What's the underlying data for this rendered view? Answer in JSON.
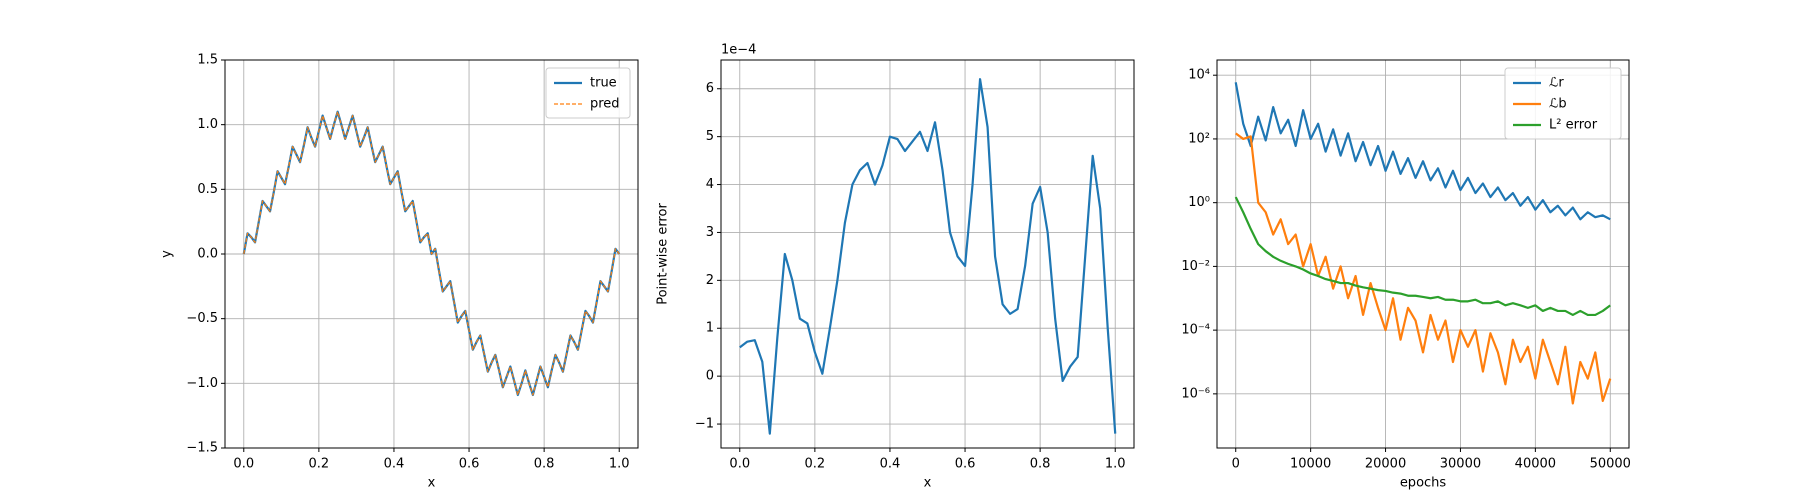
{
  "chart_data": [
    {
      "type": "line",
      "xlabel": "x",
      "ylabel": "y",
      "grid": true,
      "legend": "upper right",
      "xlim": [
        -0.05,
        1.05
      ],
      "ylim": [
        -1.5,
        1.5
      ],
      "xticks": [
        {
          "value": 0,
          "label": "0.0"
        },
        0.2,
        0.4,
        0.6,
        0.8,
        {
          "value": 1,
          "label": "1.0"
        }
      ],
      "yticks": [
        {
          "value": -1.5,
          "label": "−1.5"
        },
        {
          "value": -1,
          "label": "−1.0"
        },
        {
          "value": -0.5,
          "label": "−0.5"
        },
        {
          "value": 0,
          "label": "0.0"
        },
        0.5,
        {
          "value": 1,
          "label": "1.0"
        },
        1.5
      ],
      "x": [
        0,
        0.01,
        0.02,
        0.03,
        0.04,
        0.05,
        0.06,
        0.07,
        0.08,
        0.09,
        0.1,
        0.11,
        0.12,
        0.13,
        0.14,
        0.15,
        0.16,
        0.17,
        0.18,
        0.19,
        0.2,
        0.21,
        0.22,
        0.23,
        0.24,
        0.25,
        0.26,
        0.27,
        0.28,
        0.29,
        0.3,
        0.31,
        0.32,
        0.33,
        0.34,
        0.35,
        0.36,
        0.37,
        0.38,
        0.39,
        0.4,
        0.41,
        0.42,
        0.43,
        0.44,
        0.45,
        0.46,
        0.47,
        0.48,
        0.49,
        0.5,
        0.51,
        0.52,
        0.53,
        0.54,
        0.55,
        0.56,
        0.57,
        0.58,
        0.59,
        0.6,
        0.61,
        0.62,
        0.63,
        0.64,
        0.65,
        0.66,
        0.67,
        0.68,
        0.69,
        0.7,
        0.71,
        0.72,
        0.73,
        0.74,
        0.75,
        0.76,
        0.77,
        0.78,
        0.79,
        0.8,
        0.81,
        0.82,
        0.83,
        0.84,
        0.85,
        0.86,
        0.87,
        0.88,
        0.89,
        0.9,
        0.91,
        0.92,
        0.93,
        0.94,
        0.95,
        0.96,
        0.97,
        0.98,
        0.99,
        1
      ],
      "series": [
        {
          "name": "true",
          "color": "#1f77b4",
          "linestyle": "solid",
          "values": [
            0,
            0.16,
            0.13,
            0.09,
            0.25,
            0.41,
            0.37,
            0.33,
            0.48,
            0.64,
            0.59,
            0.54,
            0.68,
            0.83,
            0.77,
            0.71,
            0.84,
            0.98,
            0.9,
            0.83,
            0.95,
            1.07,
            0.98,
            0.89,
            1,
            1.1,
            1,
            0.89,
            0.98,
            1.07,
            0.95,
            0.83,
            0.9,
            0.98,
            0.84,
            0.71,
            0.77,
            0.83,
            0.68,
            0.54,
            0.59,
            0.64,
            0.48,
            0.33,
            0.37,
            0.41,
            0.25,
            0.09,
            0.13,
            0.16,
            0,
            0.04,
            -0.13,
            -0.29,
            -0.25,
            -0.21,
            -0.37,
            -0.53,
            -0.48,
            -0.44,
            -0.59,
            -0.74,
            -0.68,
            -0.63,
            -0.77,
            -0.91,
            -0.84,
            -0.78,
            -0.9,
            -1.03,
            -0.95,
            -0.87,
            -0.98,
            -1.09,
            -1,
            -0.9,
            -1,
            -1.09,
            -0.98,
            -0.87,
            -0.95,
            -1.03,
            -0.9,
            -0.78,
            -0.84,
            -0.91,
            -0.77,
            -0.63,
            -0.68,
            -0.74,
            -0.59,
            -0.44,
            -0.48,
            -0.53,
            -0.37,
            -0.21,
            -0.25,
            -0.29,
            -0.13,
            0.04,
            0
          ]
        },
        {
          "name": "pred",
          "color": "#ff7f0e",
          "linestyle": "dashed",
          "values": [
            0,
            0.16,
            0.13,
            0.09,
            0.25,
            0.41,
            0.37,
            0.33,
            0.48,
            0.64,
            0.59,
            0.54,
            0.68,
            0.83,
            0.77,
            0.71,
            0.84,
            0.98,
            0.9,
            0.83,
            0.95,
            1.07,
            0.98,
            0.89,
            1,
            1.1,
            1,
            0.89,
            0.98,
            1.07,
            0.95,
            0.83,
            0.9,
            0.98,
            0.84,
            0.71,
            0.77,
            0.83,
            0.68,
            0.54,
            0.59,
            0.64,
            0.48,
            0.33,
            0.37,
            0.41,
            0.25,
            0.09,
            0.13,
            0.16,
            0,
            0.04,
            -0.13,
            -0.29,
            -0.25,
            -0.21,
            -0.37,
            -0.53,
            -0.48,
            -0.44,
            -0.59,
            -0.74,
            -0.68,
            -0.63,
            -0.77,
            -0.91,
            -0.84,
            -0.78,
            -0.9,
            -1.03,
            -0.95,
            -0.87,
            -0.98,
            -1.09,
            -1,
            -0.9,
            -1,
            -1.09,
            -0.98,
            -0.87,
            -0.95,
            -1.03,
            -0.9,
            -0.78,
            -0.84,
            -0.91,
            -0.77,
            -0.63,
            -0.68,
            -0.74,
            -0.59,
            -0.44,
            -0.48,
            -0.53,
            -0.37,
            -0.21,
            -0.25,
            -0.29,
            -0.13,
            0.04,
            0
          ]
        }
      ]
    },
    {
      "type": "line",
      "xlabel": "x",
      "ylabel": "Point-wise error",
      "offset_label": "1e−4",
      "grid": true,
      "xlim": [
        -0.05,
        1.05
      ],
      "ylim": [
        -1.5,
        6.6
      ],
      "xticks": [
        {
          "value": 0,
          "label": "0.0"
        },
        0.2,
        0.4,
        0.6,
        0.8,
        {
          "value": 1,
          "label": "1.0"
        }
      ],
      "yticks": [
        {
          "value": -1,
          "label": "−1"
        },
        0,
        1,
        2,
        3,
        4,
        5,
        6
      ],
      "x": [
        0,
        0.02,
        0.04,
        0.06,
        0.08,
        0.1,
        0.12,
        0.14,
        0.16,
        0.18,
        0.2,
        0.22,
        0.24,
        0.26,
        0.28,
        0.3,
        0.32,
        0.34,
        0.36,
        0.38,
        0.4,
        0.42,
        0.44,
        0.46,
        0.48,
        0.5,
        0.52,
        0.54,
        0.56,
        0.58,
        0.6,
        0.62,
        0.64,
        0.66,
        0.68,
        0.7,
        0.72,
        0.74,
        0.76,
        0.78,
        0.8,
        0.82,
        0.84,
        0.86,
        0.88,
        0.9,
        0.92,
        0.94,
        0.96,
        0.98,
        1
      ],
      "series": [
        {
          "color": "#1f77b4",
          "linestyle": "solid",
          "values": [
            0.6,
            0.72,
            0.75,
            0.3,
            -1.2,
            0.8,
            2.55,
            2.0,
            1.2,
            1.1,
            0.5,
            0.05,
            1.0,
            2.0,
            3.2,
            4.0,
            4.3,
            4.45,
            4.0,
            4.4,
            5.0,
            4.95,
            4.7,
            4.9,
            5.1,
            4.7,
            5.3,
            4.3,
            3.0,
            2.5,
            2.3,
            4.0,
            6.2,
            5.2,
            2.5,
            1.5,
            1.3,
            1.4,
            2.3,
            3.6,
            3.95,
            3.0,
            1.2,
            -0.1,
            0.2,
            0.4,
            2.5,
            4.6,
            3.5,
            1.0,
            -1.2
          ]
        }
      ]
    },
    {
      "type": "line",
      "xlabel": "epochs",
      "grid": true,
      "log_y": true,
      "legend": "upper right",
      "xlim": [
        -2500,
        52500
      ],
      "ylim": [
        2e-08,
        30000
      ],
      "xticks": [
        0,
        10000,
        20000,
        30000,
        40000,
        50000
      ],
      "yticks": [
        {
          "value": 1e-06,
          "label": "10⁻⁶"
        },
        {
          "value": 0.0001,
          "label": "10⁻⁴"
        },
        {
          "value": 0.01,
          "label": "10⁻²"
        },
        {
          "value": 1,
          "label": "10⁰"
        },
        {
          "value": 100,
          "label": "10²"
        },
        {
          "value": 10000,
          "label": "10⁴"
        }
      ],
      "x": [
        0,
        1000,
        2000,
        3000,
        4000,
        5000,
        6000,
        7000,
        8000,
        9000,
        10000,
        11000,
        12000,
        13000,
        14000,
        15000,
        16000,
        17000,
        18000,
        19000,
        20000,
        21000,
        22000,
        23000,
        24000,
        25000,
        26000,
        27000,
        28000,
        29000,
        30000,
        31000,
        32000,
        33000,
        34000,
        35000,
        36000,
        37000,
        38000,
        39000,
        40000,
        41000,
        42000,
        43000,
        44000,
        45000,
        46000,
        47000,
        48000,
        49000,
        50000
      ],
      "series": [
        {
          "name": "ℒr",
          "color": "#1f77b4",
          "linestyle": "solid",
          "values": [
            6000,
            300,
            60,
            500,
            90,
            1000,
            150,
            400,
            60,
            800,
            100,
            300,
            40,
            200,
            30,
            150,
            20,
            80,
            15,
            60,
            10,
            40,
            8,
            25,
            6,
            20,
            5,
            12,
            3,
            10,
            2.5,
            6,
            2,
            4,
            1.5,
            3,
            1.2,
            2,
            0.8,
            1.5,
            0.6,
            1.2,
            0.5,
            0.8,
            0.4,
            0.7,
            0.3,
            0.5,
            0.35,
            0.4,
            0.3
          ]
        },
        {
          "name": "ℒb",
          "color": "#ff7f0e",
          "linestyle": "solid",
          "values": [
            150,
            100,
            120,
            1,
            0.5,
            0.1,
            0.3,
            0.05,
            0.1,
            0.01,
            0.05,
            0.005,
            0.02,
            0.002,
            0.01,
            0.001,
            0.005,
            0.0003,
            0.003,
            0.0005,
            0.0001,
            0.001,
            5e-05,
            0.0005,
            0.0002,
            2e-05,
            0.0003,
            5e-05,
            0.0002,
            1e-05,
            0.0001,
            3e-05,
            0.0001,
            5e-06,
            8e-05,
            2e-05,
            2e-06,
            5e-05,
            1e-05,
            3e-05,
            3e-06,
            5e-05,
            1e-05,
            2e-06,
            3e-05,
            5e-07,
            1e-05,
            3e-06,
            2e-05,
            6e-07,
            3e-06
          ]
        },
        {
          "name": "L² error",
          "color": "#2ca02c",
          "linestyle": "solid",
          "values": [
            1.5,
            0.5,
            0.15,
            0.05,
            0.03,
            0.02,
            0.015,
            0.012,
            0.01,
            0.008,
            0.006,
            0.005,
            0.004,
            0.0035,
            0.003,
            0.003,
            0.0025,
            0.0022,
            0.002,
            0.0018,
            0.0017,
            0.0015,
            0.0014,
            0.0012,
            0.0012,
            0.0011,
            0.001,
            0.0011,
            0.0009,
            0.0009,
            0.0008,
            0.0008,
            0.0009,
            0.0007,
            0.0007,
            0.0008,
            0.0006,
            0.0007,
            0.0006,
            0.0005,
            0.0006,
            0.0004,
            0.0005,
            0.0004,
            0.0004,
            0.0003,
            0.0004,
            0.0003,
            0.0003,
            0.0004,
            0.0006
          ]
        }
      ]
    }
  ]
}
